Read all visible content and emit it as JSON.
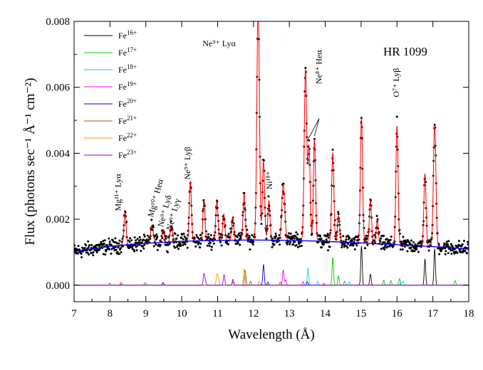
{
  "chart_data": {
    "type": "line",
    "title": "HR 1099",
    "xlabel": "Wavelength (Å)",
    "ylabel": "Flux (photons sec⁻¹ Å⁻¹ cm⁻²)",
    "xlim": [
      7,
      18
    ],
    "ylim": [
      -0.0005,
      0.008
    ],
    "x_ticks": [
      {
        "v": 7,
        "label": "7"
      },
      {
        "v": 8,
        "label": "8"
      },
      {
        "v": 9,
        "label": "9"
      },
      {
        "v": 10,
        "label": "10"
      },
      {
        "v": 11,
        "label": "11"
      },
      {
        "v": 12,
        "label": "12"
      },
      {
        "v": 13,
        "label": "13"
      },
      {
        "v": 14,
        "label": "14"
      },
      {
        "v": 15,
        "label": "15"
      },
      {
        "v": 16,
        "label": "16"
      },
      {
        "v": 17,
        "label": "17"
      },
      {
        "v": 18,
        "label": "18"
      }
    ],
    "y_ticks": [
      {
        "v": 0.0,
        "label": "0.000"
      },
      {
        "v": 0.002,
        "label": "0.002"
      },
      {
        "v": 0.004,
        "label": "0.004"
      },
      {
        "v": 0.006,
        "label": "0.006"
      },
      {
        "v": 0.008,
        "label": "0.008"
      }
    ],
    "grid": false,
    "legend_position": "top-left",
    "continuum": {
      "color": "#0000ff",
      "points": [
        [
          7.0,
          0.00102
        ],
        [
          8.0,
          0.00118
        ],
        [
          9.0,
          0.00127
        ],
        [
          10.0,
          0.00133
        ],
        [
          11.0,
          0.00136
        ],
        [
          12.0,
          0.00137
        ],
        [
          13.0,
          0.00136
        ],
        [
          14.0,
          0.00133
        ],
        [
          15.0,
          0.00128
        ],
        [
          16.0,
          0.00123
        ],
        [
          17.0,
          0.00117
        ],
        [
          18.0,
          0.0011
        ]
      ]
    },
    "model": {
      "color": "#ff0000",
      "lines": [
        {
          "x": 8.42,
          "amp": 0.001,
          "w": 0.03
        },
        {
          "x": 9.17,
          "amp": 0.0005,
          "w": 0.04
        },
        {
          "x": 9.48,
          "amp": 0.0004,
          "w": 0.03
        },
        {
          "x": 9.71,
          "amp": 0.0005,
          "w": 0.03
        },
        {
          "x": 10.24,
          "amp": 0.0018,
          "w": 0.03
        },
        {
          "x": 10.62,
          "amp": 0.0012,
          "w": 0.03
        },
        {
          "x": 10.98,
          "amp": 0.0012,
          "w": 0.03
        },
        {
          "x": 11.17,
          "amp": 0.0008,
          "w": 0.03
        },
        {
          "x": 11.42,
          "amp": 0.0007,
          "w": 0.03
        },
        {
          "x": 11.74,
          "amp": 0.0014,
          "w": 0.03
        },
        {
          "x": 12.13,
          "amp": 0.0072,
          "w": 0.035
        },
        {
          "x": 12.28,
          "amp": 0.0024,
          "w": 0.03
        },
        {
          "x": 12.43,
          "amp": 0.0012,
          "w": 0.03
        },
        {
          "x": 12.83,
          "amp": 0.0017,
          "w": 0.04
        },
        {
          "x": 13.45,
          "amp": 0.0052,
          "w": 0.035
        },
        {
          "x": 13.55,
          "amp": 0.0028,
          "w": 0.03
        },
        {
          "x": 13.7,
          "amp": 0.0031,
          "w": 0.03
        },
        {
          "x": 14.21,
          "amp": 0.0027,
          "w": 0.03
        },
        {
          "x": 14.37,
          "amp": 0.0008,
          "w": 0.03
        },
        {
          "x": 15.01,
          "amp": 0.0038,
          "w": 0.03
        },
        {
          "x": 15.26,
          "amp": 0.0013,
          "w": 0.03
        },
        {
          "x": 15.45,
          "amp": 0.0007,
          "w": 0.03
        },
        {
          "x": 16.0,
          "amp": 0.0036,
          "w": 0.03
        },
        {
          "x": 16.78,
          "amp": 0.0022,
          "w": 0.03
        },
        {
          "x": 17.05,
          "amp": 0.0037,
          "w": 0.035
        }
      ]
    },
    "ion_lines": [
      {
        "name": "Fe16+",
        "color": "#000000",
        "lines": [
          [
            15.01,
            0.00118
          ],
          [
            15.26,
            0.00033
          ],
          [
            16.78,
            0.00078
          ],
          [
            17.05,
            0.0011
          ]
        ]
      },
      {
        "name": "Fe17+",
        "color": "#00cc00",
        "lines": [
          [
            14.21,
            0.00084
          ],
          [
            14.37,
            0.00028
          ],
          [
            14.54,
            0.00012
          ],
          [
            15.63,
            0.00015
          ],
          [
            15.83,
            0.00014
          ],
          [
            16.07,
            0.0002
          ],
          [
            17.62,
            0.00014
          ]
        ]
      },
      {
        "name": "Fe18+",
        "color": "#00dddd",
        "lines": [
          [
            13.52,
            0.00051
          ],
          [
            13.79,
            0.00012
          ],
          [
            14.67,
            0.0001
          ],
          [
            16.11,
            8e-05
          ],
          [
            16.17,
            0.00011
          ]
        ]
      },
      {
        "name": "Fe19+",
        "color": "#ff00ff",
        "lines": [
          [
            12.83,
            0.00046
          ],
          [
            12.9,
            0.00016
          ],
          [
            13.38,
            0.00011
          ],
          [
            13.96,
            6e-05
          ]
        ]
      },
      {
        "name": "Fe20+",
        "color": "#0000cc",
        "lines": [
          [
            12.28,
            0.00062
          ],
          [
            12.4,
            9e-05
          ],
          [
            13.5,
            0.0001
          ],
          [
            9.48,
            8e-05
          ]
        ]
      },
      {
        "name": "Fe21+",
        "color": "#996600",
        "lines": [
          [
            11.77,
            0.00044
          ],
          [
            11.92,
            0.00012
          ],
          [
            12.75,
            0.0001
          ],
          [
            11.43,
            0.0001
          ],
          [
            8.98,
            8e-05
          ]
        ]
      },
      {
        "name": "Fe22+",
        "color": "#ff9900",
        "lines": [
          [
            10.98,
            0.0003
          ],
          [
            11.02,
            0.00022
          ],
          [
            11.74,
            0.0005
          ],
          [
            12.16,
            0.00012
          ],
          [
            8.3,
            0.0001
          ]
        ]
      },
      {
        "name": "Fe23+",
        "color": "#9900ff",
        "lines": [
          [
            10.62,
            0.00034
          ],
          [
            11.18,
            0.00032
          ],
          [
            11.43,
            0.00018
          ],
          [
            10.66,
            0.00012
          ],
          [
            7.99,
            6e-05
          ],
          [
            8.32,
            5e-05
          ]
        ]
      }
    ],
    "observed": {
      "marker": "dot",
      "color": "#000000"
    },
    "legend": [
      {
        "label": "Fe",
        "sup": "16+",
        "color": "#000000"
      },
      {
        "label": "Fe",
        "sup": "17+",
        "color": "#00cc00"
      },
      {
        "label": "Fe",
        "sup": "18+",
        "color": "#00dddd"
      },
      {
        "label": "Fe",
        "sup": "19+",
        "color": "#ff00ff"
      },
      {
        "label": "Fe",
        "sup": "20+",
        "color": "#0000cc"
      },
      {
        "label": "Fe",
        "sup": "21+",
        "color": "#996600"
      },
      {
        "label": "Fe",
        "sup": "22+",
        "color": "#ff9900"
      },
      {
        "label": "Fe",
        "sup": "23+",
        "color": "#9900ff"
      }
    ],
    "annotations": [
      {
        "text": "Mg¹¹⁺ Lyα",
        "x": 8.3,
        "y": 0.00225,
        "rot": -90
      },
      {
        "text": "Mg¹⁰⁺ Heα",
        "x": 9.2,
        "y": 0.00205,
        "rot": -75
      },
      {
        "text": "Ne⁹⁺ Lyδ",
        "x": 9.48,
        "y": 0.00175,
        "rot": -75
      },
      {
        "text": "Ne⁹⁺ Lyγ",
        "x": 9.72,
        "y": 0.00165,
        "rot": -75
      },
      {
        "text": "Ne⁹⁺ Lyβ",
        "x": 10.24,
        "y": 0.0032,
        "rot": -90
      },
      {
        "text": "Ne⁹⁺ Lyα",
        "x": 10.58,
        "y": 0.00725,
        "rot": 0
      },
      {
        "text": "Ni¹⁸⁺",
        "x": 12.52,
        "y": 0.0029,
        "rot": -90
      },
      {
        "text": "Ne⁸⁺ Heα",
        "x": 13.9,
        "y": 0.0061,
        "rot": -90
      },
      {
        "text": "O⁷⁺ Lyβ",
        "x": 16.05,
        "y": 0.0057,
        "rot": -90
      }
    ]
  }
}
